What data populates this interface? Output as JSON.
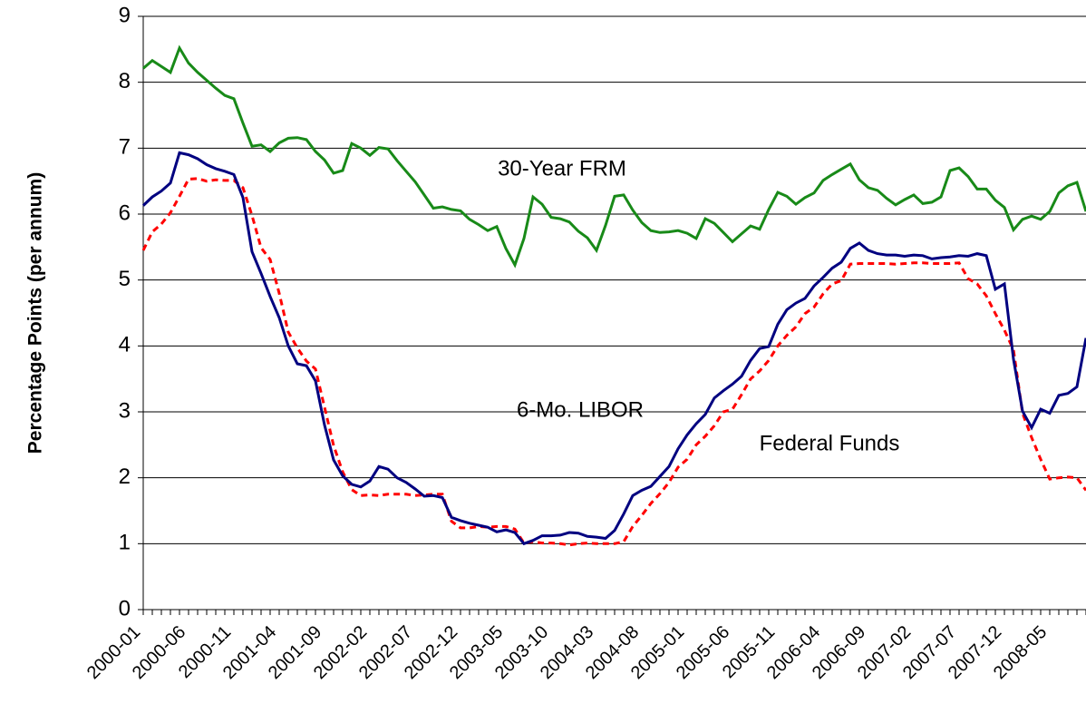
{
  "chart_data": {
    "type": "line",
    "ylabel": "Percentage Points (per annum)",
    "annotations": [
      "30-Year FRM",
      "6-Mo. LIBOR",
      "Federal Funds"
    ],
    "categories": [
      "2000-01",
      null,
      null,
      null,
      null,
      "2000-06",
      null,
      null,
      null,
      null,
      "2000-11",
      null,
      null,
      null,
      null,
      "2001-04",
      null,
      null,
      null,
      null,
      "2001-09",
      null,
      null,
      null,
      null,
      "2002-02",
      null,
      null,
      null,
      null,
      "2002-07",
      null,
      null,
      null,
      null,
      "2002-12",
      null,
      null,
      null,
      null,
      "2003-05",
      null,
      null,
      null,
      null,
      "2003-10",
      null,
      null,
      null,
      null,
      "2004-03",
      null,
      null,
      null,
      null,
      "2004-08",
      null,
      null,
      null,
      null,
      "2005-01",
      null,
      null,
      null,
      null,
      "2005-06",
      null,
      null,
      null,
      null,
      "2005-11",
      null,
      null,
      null,
      null,
      "2006-04",
      null,
      null,
      null,
      null,
      "2006-09",
      null,
      null,
      null,
      null,
      "2007-02",
      null,
      null,
      null,
      null,
      "2007-07",
      null,
      null,
      null,
      null,
      "2007-12",
      null,
      null,
      null,
      null,
      "2008-05",
      null,
      null,
      null,
      null
    ],
    "series": [
      {
        "color": "#188a18",
        "dash": false,
        "values": [
          8.21,
          8.33,
          8.24,
          8.15,
          8.52,
          8.29,
          8.15,
          8.03,
          7.91,
          7.8,
          7.75,
          7.38,
          7.03,
          7.05,
          6.95,
          7.08,
          7.15,
          7.16,
          7.13,
          6.95,
          6.82,
          6.62,
          6.66,
          7.07,
          7.0,
          6.89,
          7.01,
          6.99,
          6.81,
          6.65,
          6.49,
          6.29,
          6.09,
          6.11,
          6.07,
          6.05,
          5.92,
          5.84,
          5.75,
          5.81,
          5.48,
          5.23,
          5.63,
          6.26,
          6.15,
          5.95,
          5.93,
          5.88,
          5.74,
          5.64,
          5.45,
          5.83,
          6.27,
          6.29,
          6.06,
          5.87,
          5.75,
          5.72,
          5.73,
          5.75,
          5.71,
          5.63,
          5.93,
          5.86,
          5.72,
          5.58,
          5.7,
          5.82,
          5.77,
          6.07,
          6.33,
          6.27,
          6.15,
          6.25,
          6.32,
          6.51,
          6.6,
          6.68,
          6.76,
          6.52,
          6.4,
          6.36,
          6.24,
          6.14,
          6.22,
          6.29,
          6.16,
          6.18,
          6.26,
          6.66,
          6.7,
          6.57,
          6.38,
          6.38,
          6.21,
          6.1,
          5.76,
          5.92,
          5.97,
          5.92,
          6.04,
          6.32,
          6.43,
          6.48,
          6.04
        ]
      },
      {
        "color": "#000080",
        "dash": false,
        "values": [
          6.13,
          6.26,
          6.35,
          6.47,
          6.93,
          6.9,
          6.84,
          6.75,
          6.69,
          6.65,
          6.6,
          6.25,
          5.43,
          5.1,
          4.75,
          4.43,
          4.0,
          3.73,
          3.7,
          3.47,
          2.8,
          2.27,
          2.03,
          1.9,
          1.86,
          1.95,
          2.17,
          2.13,
          2.0,
          1.93,
          1.83,
          1.72,
          1.73,
          1.7,
          1.4,
          1.35,
          1.31,
          1.28,
          1.25,
          1.18,
          1.21,
          1.17,
          1.0,
          1.05,
          1.12,
          1.12,
          1.13,
          1.17,
          1.16,
          1.11,
          1.1,
          1.08,
          1.2,
          1.45,
          1.73,
          1.81,
          1.87,
          2.02,
          2.17,
          2.44,
          2.65,
          2.82,
          2.96,
          3.21,
          3.32,
          3.42,
          3.54,
          3.78,
          3.96,
          3.99,
          4.33,
          4.55,
          4.65,
          4.72,
          4.91,
          5.04,
          5.18,
          5.27,
          5.48,
          5.56,
          5.45,
          5.4,
          5.38,
          5.38,
          5.36,
          5.38,
          5.37,
          5.32,
          5.34,
          5.35,
          5.37,
          5.36,
          5.4,
          5.37,
          4.86,
          4.94,
          3.8,
          3.01,
          2.76,
          3.04,
          2.98,
          3.25,
          3.28,
          3.38,
          4.12
        ]
      },
      {
        "color": "#ff0000",
        "dash": true,
        "values": [
          5.45,
          5.73,
          5.85,
          6.02,
          6.27,
          6.53,
          6.54,
          6.5,
          6.52,
          6.51,
          6.51,
          6.4,
          5.98,
          5.49,
          5.31,
          4.8,
          4.21,
          3.97,
          3.77,
          3.65,
          3.07,
          2.49,
          2.09,
          1.82,
          1.73,
          1.74,
          1.73,
          1.75,
          1.75,
          1.75,
          1.73,
          1.74,
          1.75,
          1.75,
          1.34,
          1.24,
          1.24,
          1.26,
          1.25,
          1.26,
          1.26,
          1.22,
          1.01,
          1.03,
          1.01,
          1.01,
          1.0,
          0.98,
          1.0,
          1.01,
          1.0,
          1.0,
          1.0,
          1.03,
          1.26,
          1.43,
          1.61,
          1.76,
          1.93,
          2.16,
          2.28,
          2.5,
          2.63,
          2.79,
          3.0,
          3.04,
          3.26,
          3.5,
          3.62,
          3.78,
          4.0,
          4.16,
          4.29,
          4.49,
          4.59,
          4.79,
          4.94,
          4.99,
          5.24,
          5.25,
          5.25,
          5.25,
          5.25,
          5.24,
          5.25,
          5.26,
          5.26,
          5.25,
          5.25,
          5.25,
          5.26,
          5.02,
          4.94,
          4.76,
          4.49,
          4.24,
          3.94,
          2.98,
          2.61,
          2.28,
          1.98,
          2.0,
          2.01,
          2.0,
          1.81
        ]
      }
    ],
    "ylim": [
      0,
      9
    ],
    "yticks": [
      0,
      1,
      2,
      3,
      4,
      5,
      6,
      7,
      8,
      9
    ],
    "grid": true
  }
}
